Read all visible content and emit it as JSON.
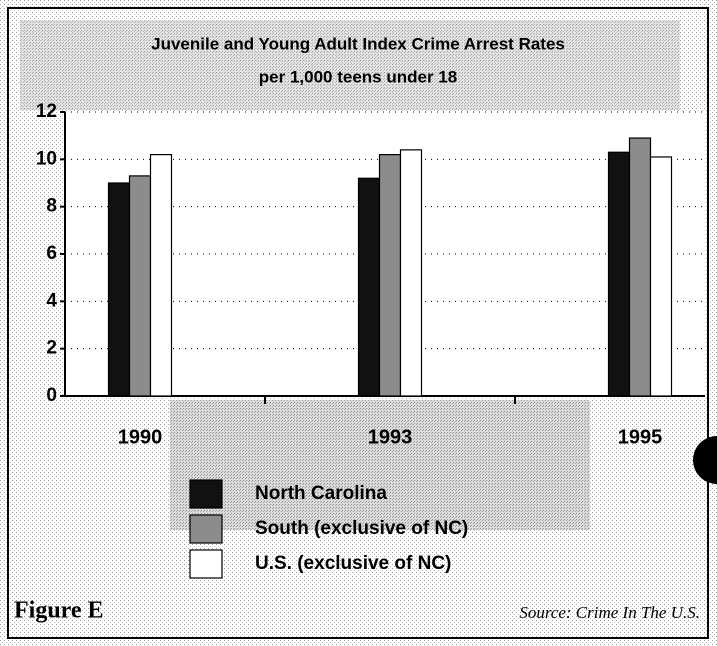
{
  "chart_data": {
    "type": "bar",
    "title": "Juvenile and Young Adult Index Crime Arrest Rates",
    "subtitle": "per 1,000 teens under 18",
    "categories": [
      "1990",
      "1993",
      "1995"
    ],
    "series": [
      {
        "name": "North Carolina",
        "color": "#111111",
        "values": [
          9.0,
          9.2,
          10.3
        ]
      },
      {
        "name": "South (exclusive of NC)",
        "color": "#8c8c8c",
        "values": [
          9.3,
          10.2,
          10.9
        ]
      },
      {
        "name": "U.S. (exclusive of NC)",
        "color": "#ffffff",
        "values": [
          10.2,
          10.4,
          10.1
        ]
      }
    ],
    "ylim": [
      0,
      12
    ],
    "yticks": [
      0,
      2,
      4,
      6,
      8,
      10,
      12
    ],
    "grid": true,
    "figure_label": "Figure E",
    "source": "Source: Crime In The U.S."
  }
}
